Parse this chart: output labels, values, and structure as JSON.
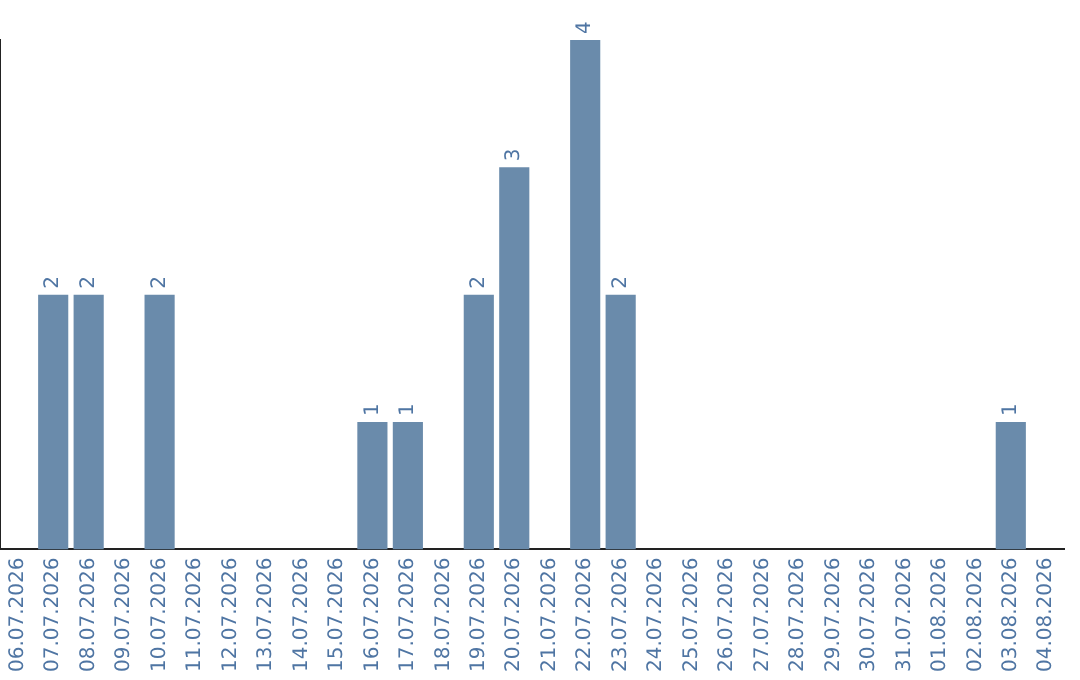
{
  "chart_data": {
    "type": "bar",
    "categories": [
      "06.07.2026",
      "07.07.2026",
      "08.07.2026",
      "09.07.2026",
      "10.07.2026",
      "11.07.2026",
      "12.07.2026",
      "13.07.2026",
      "14.07.2026",
      "15.07.2026",
      "16.07.2026",
      "17.07.2026",
      "18.07.2026",
      "19.07.2026",
      "20.07.2026",
      "21.07.2026",
      "22.07.2026",
      "23.07.2026",
      "24.07.2026",
      "25.07.2026",
      "26.07.2026",
      "27.07.2026",
      "28.07.2026",
      "29.07.2026",
      "30.07.2026",
      "31.07.2026",
      "01.08.2026",
      "02.08.2026",
      "03.08.2026",
      "04.08.2026"
    ],
    "values": [
      0,
      2,
      2,
      0,
      2,
      0,
      0,
      0,
      0,
      0,
      1,
      1,
      0,
      2,
      3,
      0,
      4,
      2,
      0,
      0,
      0,
      0,
      0,
      0,
      0,
      0,
      0,
      0,
      1,
      0
    ],
    "value_labels": [
      null,
      "2",
      "2",
      null,
      "2",
      null,
      null,
      null,
      null,
      null,
      "1",
      "1",
      null,
      "2",
      "3",
      null,
      "4",
      "2",
      null,
      null,
      null,
      null,
      null,
      null,
      null,
      null,
      null,
      null,
      "1",
      null
    ],
    "color": "#6a8bab",
    "ylim": [
      0,
      4
    ],
    "tick_labels": "x",
    "grid": false,
    "legend": false
  }
}
